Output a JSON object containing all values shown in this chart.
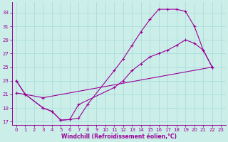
{
  "xlabel": "Windchill (Refroidissement éolien,°C)",
  "bg_color": "#cceee8",
  "line_color": "#990099",
  "grid_color": "#aadddd",
  "xlim": [
    -0.5,
    23.5
  ],
  "ylim": [
    16.5,
    34.5
  ],
  "yticks": [
    17,
    19,
    21,
    23,
    25,
    27,
    29,
    31,
    33
  ],
  "xticks": [
    0,
    1,
    2,
    3,
    4,
    5,
    6,
    7,
    8,
    9,
    10,
    11,
    12,
    13,
    14,
    15,
    16,
    17,
    18,
    19,
    20,
    21,
    22,
    23
  ],
  "line1_x": [
    0,
    1,
    3,
    4,
    5,
    6,
    7,
    8,
    11,
    12,
    13,
    14,
    15,
    16,
    17,
    18,
    19,
    20,
    21,
    22
  ],
  "line1_y": [
    23,
    21,
    19,
    18.5,
    17.2,
    17.3,
    17.5,
    19.5,
    24.5,
    26.2,
    28.2,
    30.2,
    32.0,
    33.5,
    33.5,
    33.5,
    33.2,
    31.0,
    27.5,
    25.0
  ],
  "line2_x": [
    0,
    1,
    3,
    4,
    5,
    6,
    7,
    11,
    12,
    13,
    14,
    15,
    16,
    17,
    18,
    19,
    20,
    21,
    22
  ],
  "line2_y": [
    23,
    21,
    19,
    18.5,
    17.2,
    17.3,
    19.5,
    22.0,
    23.0,
    24.5,
    25.5,
    26.5,
    27.0,
    27.5,
    28.2,
    29.0,
    28.5,
    27.5,
    25.0
  ],
  "line3_x": [
    0,
    1,
    3,
    22
  ],
  "line3_y": [
    21.2,
    21.0,
    20.5,
    25.0
  ]
}
